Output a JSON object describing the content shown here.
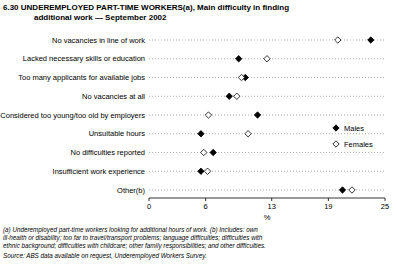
{
  "chart_data": {
    "type": "dot",
    "orientation": "horizontal",
    "title": "6.30  UNDEREMPLOYED PART-TIME WORKERS(a), Main difficulty in finding",
    "subtitle": "additional work — September 2002",
    "x_label": "%",
    "categories": [
      "No vacancies in line of work",
      "Lacked necessary skills or education",
      "Too many applicants for available jobs",
      "No vacancies at all",
      "Considered too young/too old by employers",
      "Unsuitable hours",
      "No difficulties reported",
      "Insufficient work experience",
      "Other(b)"
    ],
    "series": [
      {
        "name": "Males",
        "color": "#000000",
        "marker": "diamond",
        "values": [
          23.5,
          9.5,
          10.2,
          8.5,
          11.5,
          5.5,
          6.8,
          5.5,
          20.5
        ]
      },
      {
        "name": "Females",
        "color": "#000000",
        "marker": "open-diamond",
        "values": [
          20,
          12.5,
          9.8,
          9.3,
          6.3,
          10.5,
          5.8,
          6.2,
          21.5
        ]
      }
    ],
    "xlim": [
      0,
      25
    ],
    "xticks": [
      0,
      6,
      13,
      19,
      25
    ],
    "grid": true,
    "legend": "right",
    "notes": [
      "(a) Underemployed part-time workers looking for additional hours of work. (b) Includes: own",
      "ill-health or disability; too far to travel/transport problems; language difficulties; difficulties with",
      "ethnic background; difficulties with childcare; other family responsibilities; and other difficulties."
    ],
    "source": "Source: ABS data available on request, Underemployed Workers Survey."
  }
}
